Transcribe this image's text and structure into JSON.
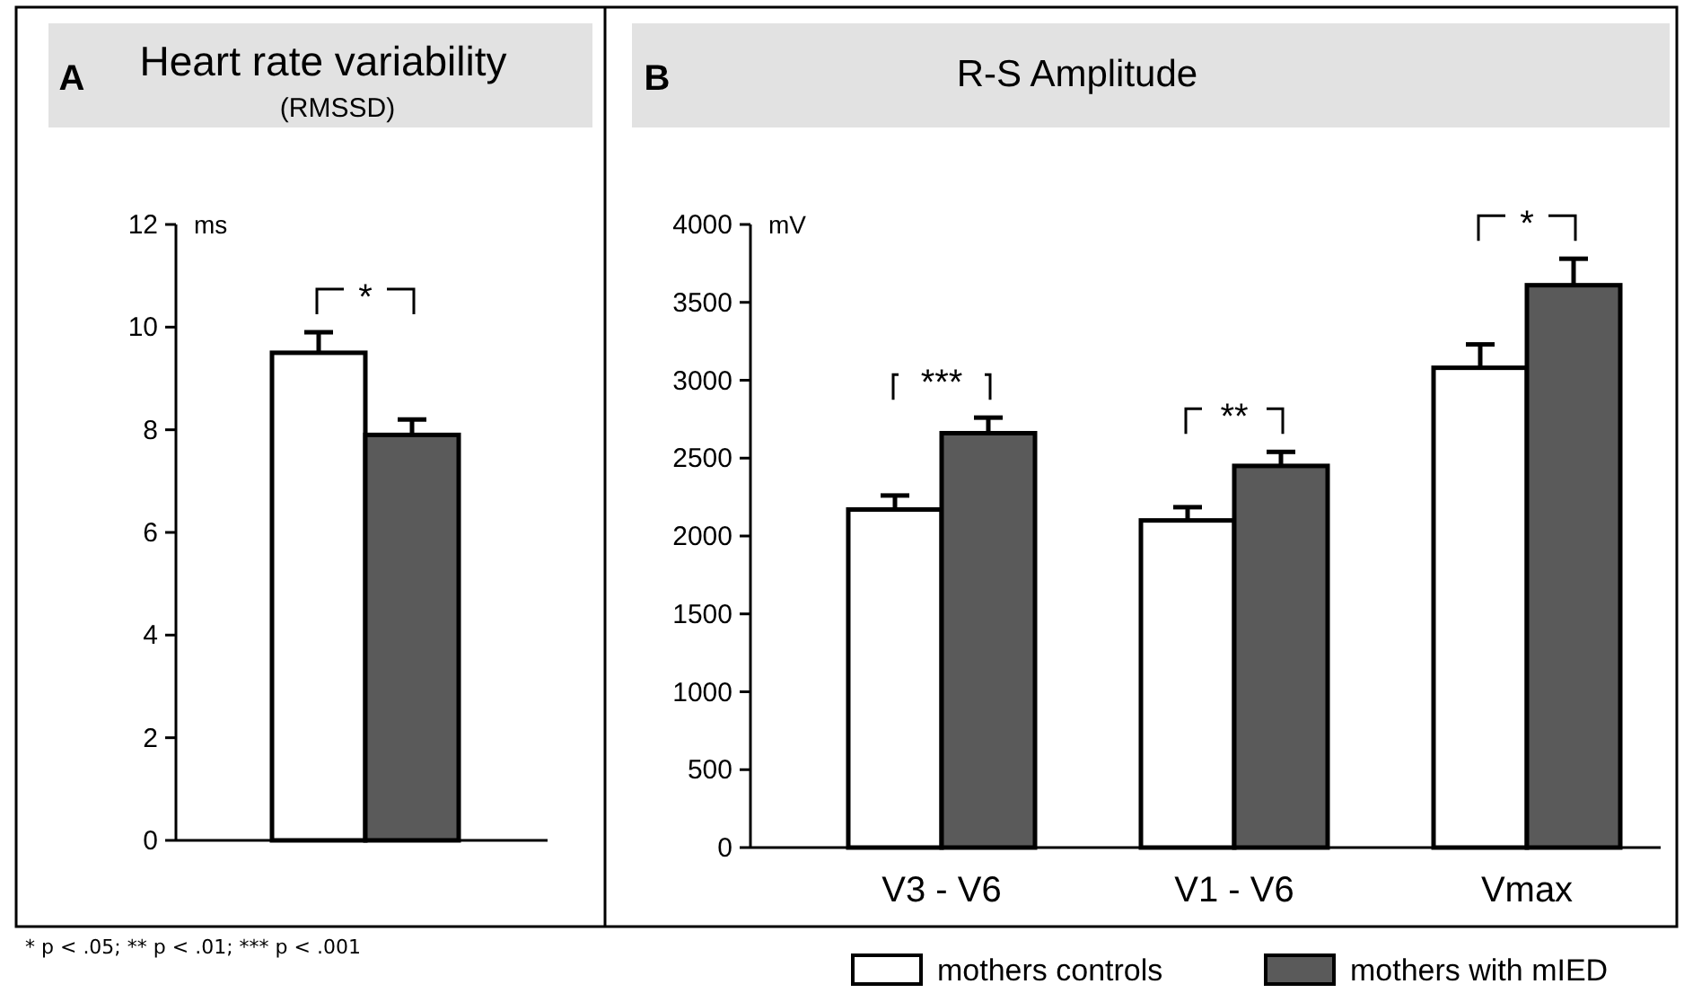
{
  "chart_data": [
    {
      "type": "bar",
      "title": "Heart rate variability",
      "subtitle": "(RMSSD)",
      "ylabel": "ms",
      "categories": [
        null
      ],
      "series": [
        {
          "color": "#ffffff",
          "values": [
            9.5
          ],
          "errors": [
            0.4
          ]
        },
        {
          "color": "#5a5a5a",
          "values": [
            7.9
          ],
          "errors": [
            0.3
          ]
        }
      ],
      "ylim": [
        0,
        12
      ],
      "yticks": [
        0,
        2,
        4,
        6,
        8,
        10,
        12
      ],
      "grid": false,
      "annotations": [
        "A",
        "*",
        "* p < .05; ** p < .01; *** p < .001"
      ]
    },
    {
      "type": "bar",
      "title": "R-S Amplitude",
      "ylabel": "mV",
      "categories": [
        "V3 - V6",
        "V1 - V6",
        "Vmax"
      ],
      "series": [
        {
          "name": "mothers controls",
          "color": "#ffffff",
          "values": [
            2170,
            2100,
            3080
          ],
          "errors": [
            90,
            85,
            150
          ]
        },
        {
          "name": "mothers with mIED",
          "color": "#5a5a5a",
          "values": [
            2660,
            2450,
            3610
          ],
          "errors": [
            100,
            90,
            170
          ]
        }
      ],
      "ylim": [
        0,
        4000
      ],
      "yticks": [
        0,
        500,
        1000,
        1500,
        2000,
        2500,
        3000,
        3500,
        4000
      ],
      "grid": false,
      "legend": "bottom",
      "annotations": [
        "B",
        "***",
        "**",
        "*"
      ]
    }
  ]
}
